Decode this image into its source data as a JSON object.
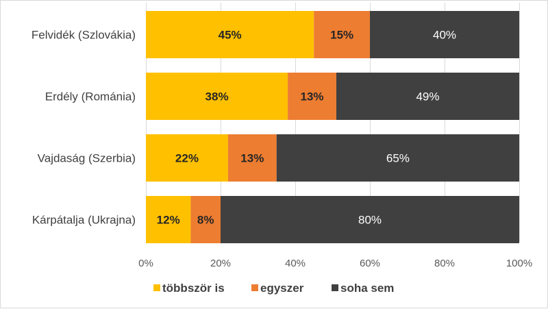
{
  "chart_data": {
    "type": "bar",
    "orientation": "horizontal",
    "stacked": true,
    "categories": [
      "Felvidék (Szlovákia)",
      "Erdély (Románia)",
      "Vajdaság (Szerbia)",
      "Kárpátalja (Ukrajna)"
    ],
    "series": [
      {
        "name": "többször is",
        "values": [
          45,
          38,
          22,
          12
        ],
        "color": "#FFC000",
        "label_bold": true,
        "label_color": "#262626"
      },
      {
        "name": "egyszer",
        "values": [
          15,
          13,
          13,
          8
        ],
        "color": "#ED7D31",
        "label_bold": true,
        "label_color": "#262626"
      },
      {
        "name": "soha sem",
        "values": [
          40,
          49,
          65,
          80
        ],
        "color": "#404040",
        "label_bold": false,
        "label_color": "#ffffff"
      }
    ],
    "value_suffix": "%",
    "xlim": [
      0,
      100
    ],
    "x_ticks": [
      0,
      20,
      40,
      60,
      80,
      100
    ],
    "x_tick_labels": [
      "0%",
      "20%",
      "40%",
      "60%",
      "80%",
      "100%"
    ],
    "grid": "vertical",
    "legend_position": "bottom",
    "title": "",
    "xlabel": "",
    "ylabel": ""
  }
}
